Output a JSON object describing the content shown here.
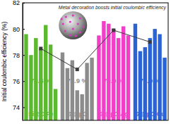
{
  "chart_data": {
    "type": "bar",
    "y_label": "Initial coulombic efficiency (%)",
    "annotation": "Metal decoration boosts initial coulombic efficiency",
    "ylim": [
      73,
      82
    ],
    "yticks": [
      74,
      76,
      78,
      80,
      82
    ],
    "tick_labels": "y",
    "series": [
      {
        "name": "Si@C-Fe",
        "color": "#5cb82e",
        "values": [
          79.6,
          78.0,
          79.3,
          78.5,
          80.3,
          78.8,
          75.4
        ],
        "average": {
          "value": 78.5,
          "label": "78.5 %"
        }
      },
      {
        "name": "Si@pC",
        "color": "#8c8c8c",
        "values": [
          78.2,
          77.0,
          77.6,
          75.3,
          75.0,
          77.4,
          77.8
        ],
        "average": {
          "value": 76.9,
          "label": "76.9 %"
        }
      },
      {
        "name": "Si@pC-Ag",
        "color": "#f23fc8",
        "values": [
          79.5,
          80.6,
          80.4,
          80.0,
          79.3,
          80.2,
          79.5
        ],
        "average": {
          "value": 79.9,
          "label": "79.9 %"
        }
      },
      {
        "name": "Si@pC-Cu",
        "color": "#2a62d8",
        "values": [
          80.4,
          78.3,
          78.6,
          79.3,
          80.0,
          79.6,
          77.8
        ],
        "average": {
          "value": 79.0,
          "label": "79.0 %"
        }
      }
    ]
  }
}
